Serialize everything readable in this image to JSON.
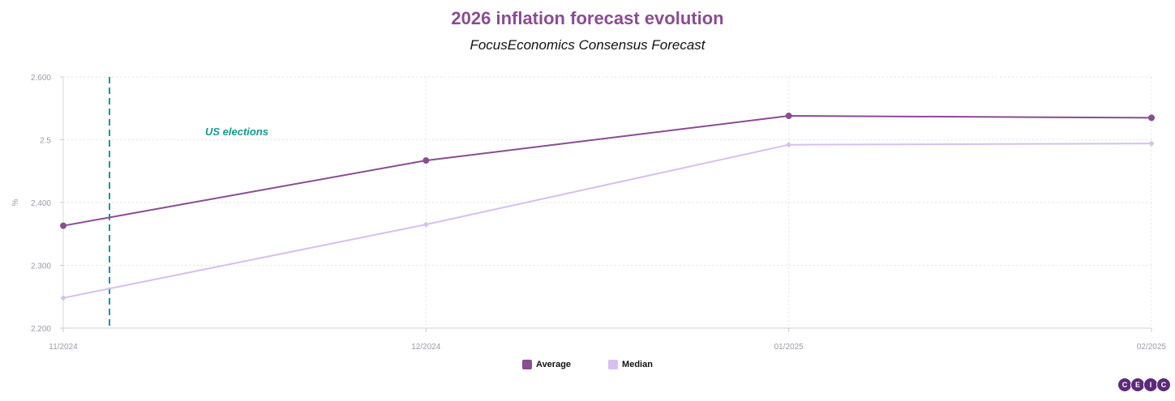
{
  "chart_data": {
    "type": "line",
    "title": "2026 inflation forecast evolution",
    "subtitle": "FocusEconomics Consensus Forecast",
    "ylabel": "%",
    "x": [
      "11/2024",
      "12/2024",
      "01/2025",
      "02/2025"
    ],
    "y_ticks": [
      "2.200",
      "2.300",
      "2.400",
      "2.5",
      "2.600"
    ],
    "ylim": [
      2.2,
      2.6
    ],
    "grid": true,
    "legend_position": "bottom-center",
    "series": [
      {
        "name": "Average",
        "values": [
          2.363,
          2.467,
          2.538,
          2.535
        ],
        "color": "#8a4c92"
      },
      {
        "name": "Median",
        "values": [
          2.248,
          2.365,
          2.492,
          2.494
        ],
        "color": "#d7bff0"
      }
    ],
    "annotation": {
      "label": "US elections",
      "x": "11/2024 (early)",
      "color": "#17998f"
    }
  },
  "logo": {
    "letters": [
      "C",
      "E",
      "I",
      "C"
    ]
  }
}
